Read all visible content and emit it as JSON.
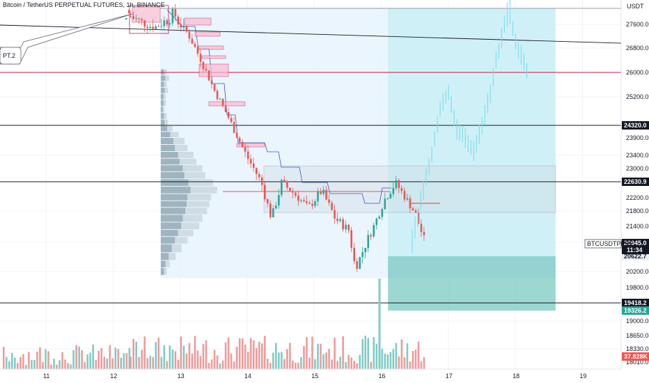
{
  "header": {
    "title": "Bitcoin / TetherUS PERPETUAL FUTURES, 1h, BINANCE"
  },
  "axis": {
    "currency": "USDT"
  },
  "callout": {
    "label": "PT.2"
  },
  "colors": {
    "up": "#26a69a",
    "down": "#ef5350",
    "upLight": "#80deea",
    "level": "#131722",
    "resistance": "#b71c3c",
    "profit": "#26a69a",
    "rangeZone": "#e3f2fd",
    "badgeGreen": "#26a69a",
    "badgeRed": "#ef5350",
    "badgeDark": "#131722"
  },
  "chart_data": {
    "type": "candlestick",
    "symbol": "BTCUSDTPERP",
    "interval": "1h",
    "exchange": "BINANCE",
    "y_ticks": [
      27600,
      26800,
      26000,
      25200,
      24320,
      23900,
      23400,
      23000,
      22630.9,
      22200,
      21800,
      21400,
      20945,
      20622.7,
      20200,
      19800,
      19418.2,
      19326.2,
      19000,
      18650,
      18330,
      18010
    ],
    "x_ticks": [
      "11",
      "12",
      "13",
      "14",
      "15",
      "16",
      "17",
      "18",
      "19"
    ],
    "price_labels": {
      "last": {
        "value": "20945.0",
        "countdown": "11:34",
        "name": "BTCUSDTPERP"
      },
      "level_24320": "24320.0",
      "level_22630": "22630.9",
      "level_20622": "20622.7",
      "level_19418": "19418.2",
      "level_19326": "19326.2",
      "volume": "37.828K"
    },
    "horizontal_levels": [
      24320,
      22630.9,
      19418.2
    ],
    "resistance_level": 26000,
    "trend_line": {
      "from": {
        "day": 10.8,
        "price": 27650
      },
      "to": {
        "day": 19.5,
        "price": 27000
      }
    },
    "projection_to": 27900,
    "zones": {
      "range_box": {
        "from_day": 12.7,
        "to_day": 18.6,
        "top": 27900,
        "bottom": 20040
      },
      "consolidation_box": {
        "from_day": 14.25,
        "to_day": 18.6,
        "top": 23080,
        "bottom": 21760
      },
      "profit_zone": {
        "from_day": 16.1,
        "to_day": 18.6,
        "top": 27900,
        "bottom": 20622.7
      },
      "loss_zone": {
        "from_day": 16.1,
        "to_day": 18.6,
        "top": 20622.7,
        "bottom": 19326.2
      }
    },
    "volume_spike": {
      "day": 16.0,
      "relative": 0.95
    }
  }
}
